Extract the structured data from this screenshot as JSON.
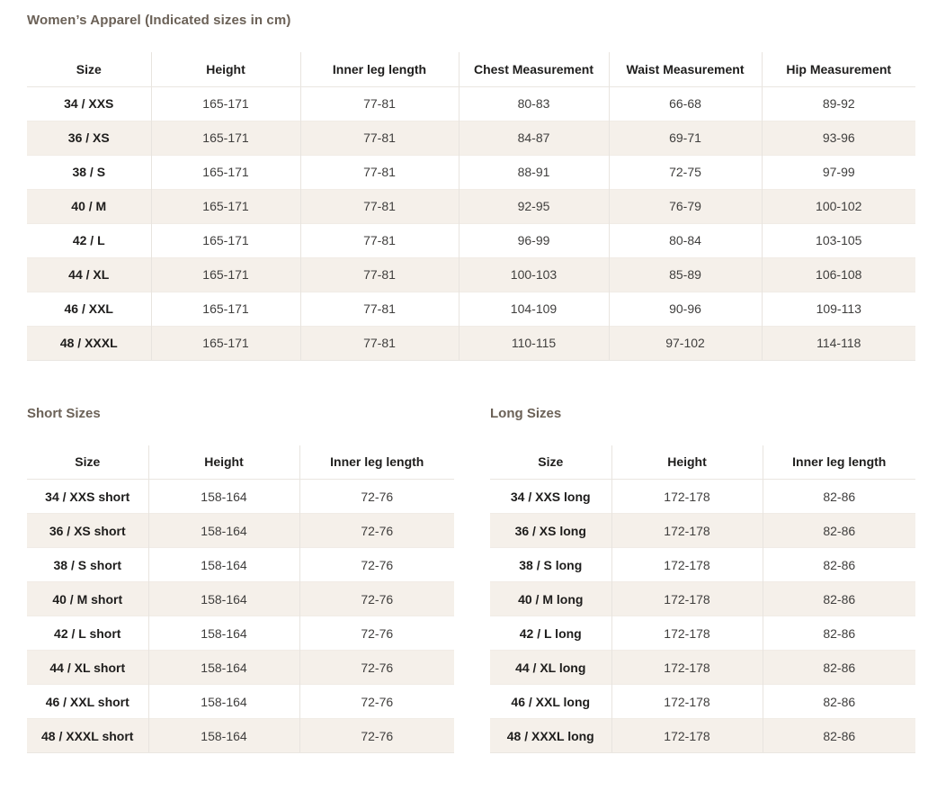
{
  "page": {
    "title": "Women’s Apparel (Indicated sizes in cm)"
  },
  "colors": {
    "heading": "#6b6157",
    "row_alt_background": "#f5f0ea",
    "body_text": "#3f3e3d"
  },
  "main_table": {
    "columns": [
      "Size",
      "Height",
      "Inner leg length",
      "Chest Measurement",
      "Waist Measurement",
      "Hip Measurement"
    ],
    "rows": [
      [
        "34 / XXS",
        "165-171",
        "77-81",
        "80-83",
        "66-68",
        "89-92"
      ],
      [
        "36 / XS",
        "165-171",
        "77-81",
        "84-87",
        "69-71",
        "93-96"
      ],
      [
        "38 / S",
        "165-171",
        "77-81",
        "88-91",
        "72-75",
        "97-99"
      ],
      [
        "40 / M",
        "165-171",
        "77-81",
        "92-95",
        "76-79",
        "100-102"
      ],
      [
        "42 / L",
        "165-171",
        "77-81",
        "96-99",
        "80-84",
        "103-105"
      ],
      [
        "44 / XL",
        "165-171",
        "77-81",
        "100-103",
        "85-89",
        "106-108"
      ],
      [
        "46 / XXL",
        "165-171",
        "77-81",
        "104-109",
        "90-96",
        "109-113"
      ],
      [
        "48 / XXXL",
        "165-171",
        "77-81",
        "110-115",
        "97-102",
        "114-118"
      ]
    ]
  },
  "short_table": {
    "heading": "Short Sizes",
    "columns": [
      "Size",
      "Height",
      "Inner leg length"
    ],
    "rows": [
      [
        "34 / XXS short",
        "158-164",
        "72-76"
      ],
      [
        "36 / XS short",
        "158-164",
        "72-76"
      ],
      [
        "38 / S short",
        "158-164",
        "72-76"
      ],
      [
        "40 / M short",
        "158-164",
        "72-76"
      ],
      [
        "42 / L short",
        "158-164",
        "72-76"
      ],
      [
        "44 / XL short",
        "158-164",
        "72-76"
      ],
      [
        "46 / XXL short",
        "158-164",
        "72-76"
      ],
      [
        "48 / XXXL short",
        "158-164",
        "72-76"
      ]
    ]
  },
  "long_table": {
    "heading": "Long Sizes",
    "columns": [
      "Size",
      "Height",
      "Inner leg length"
    ],
    "rows": [
      [
        "34 / XXS long",
        "172-178",
        "82-86"
      ],
      [
        "36 / XS long",
        "172-178",
        "82-86"
      ],
      [
        "38 / S long",
        "172-178",
        "82-86"
      ],
      [
        "40 / M long",
        "172-178",
        "82-86"
      ],
      [
        "42 / L long",
        "172-178",
        "82-86"
      ],
      [
        "44 / XL long",
        "172-178",
        "82-86"
      ],
      [
        "46 / XXL long",
        "172-178",
        "82-86"
      ],
      [
        "48 / XXXL long",
        "172-178",
        "82-86"
      ]
    ]
  }
}
